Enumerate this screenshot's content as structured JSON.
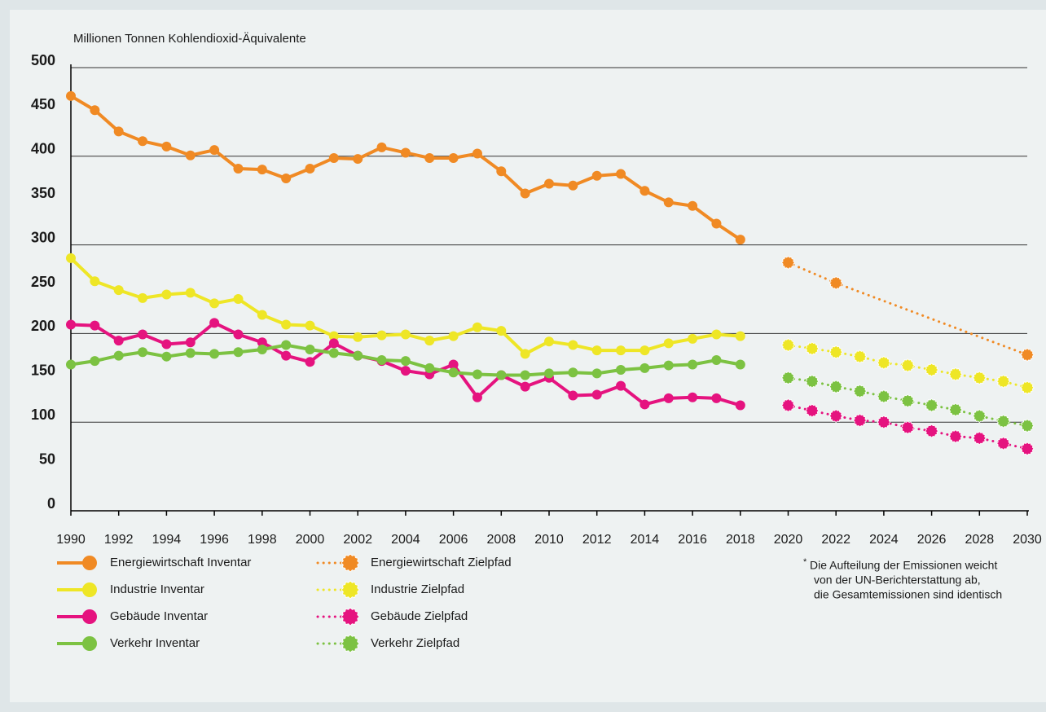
{
  "chart_data": {
    "type": "line",
    "ylabel": "Millionen Tonnen Kohlendioxid-Äquivalente",
    "xlim": [
      1990,
      2030
    ],
    "xticks": [
      1990,
      1992,
      1994,
      1996,
      1998,
      2000,
      2002,
      2004,
      2006,
      2008,
      2010,
      2012,
      2014,
      2016,
      2018,
      2020,
      2022,
      2024,
      2026,
      2028,
      2030
    ],
    "ylim": [
      0,
      500
    ],
    "yticks": [
      0,
      50,
      100,
      150,
      200,
      250,
      300,
      350,
      400,
      450,
      500
    ],
    "ygrid": [
      100,
      200,
      300,
      400,
      500
    ],
    "series": [
      {
        "name": "Energiewirtschaft Inventar",
        "color": "#f08a24",
        "style": "solid",
        "x": [
          1990,
          1991,
          1992,
          1993,
          1994,
          1995,
          1996,
          1997,
          1998,
          1999,
          2000,
          2001,
          2002,
          2003,
          2004,
          2005,
          2006,
          2007,
          2008,
          2009,
          2010,
          2011,
          2012,
          2013,
          2014,
          2015,
          2016,
          2017,
          2018
        ],
        "values": [
          468,
          452,
          428,
          417,
          411,
          401,
          407,
          386,
          385,
          375,
          386,
          398,
          397,
          410,
          404,
          398,
          398,
          403,
          383,
          358,
          369,
          367,
          378,
          380,
          361,
          348,
          344,
          324,
          306
        ]
      },
      {
        "name": "Industrie Inventar",
        "color": "#eee626",
        "style": "solid",
        "x": [
          1990,
          1991,
          1992,
          1993,
          1994,
          1995,
          1996,
          1997,
          1998,
          1999,
          2000,
          2001,
          2002,
          2003,
          2004,
          2005,
          2006,
          2007,
          2008,
          2009,
          2010,
          2011,
          2012,
          2013,
          2014,
          2015,
          2016,
          2017,
          2018
        ],
        "values": [
          285,
          259,
          249,
          240,
          244,
          246,
          234,
          239,
          221,
          210,
          209,
          197,
          196,
          198,
          199,
          192,
          197,
          207,
          203,
          177,
          191,
          187,
          181,
          181,
          181,
          189,
          194,
          199,
          197
        ]
      },
      {
        "name": "Gebäude Inventar",
        "color": "#e5137f",
        "style": "solid",
        "x": [
          1990,
          1991,
          1992,
          1993,
          1994,
          1995,
          1996,
          1997,
          1998,
          1999,
          2000,
          2001,
          2002,
          2003,
          2004,
          2005,
          2006,
          2007,
          2008,
          2009,
          2010,
          2011,
          2012,
          2013,
          2014,
          2015,
          2016,
          2017,
          2018
        ],
        "values": [
          210,
          209,
          192,
          199,
          188,
          190,
          212,
          199,
          190,
          175,
          168,
          189,
          175,
          169,
          158,
          154,
          165,
          128,
          153,
          140,
          150,
          130,
          131,
          141,
          120,
          127,
          128,
          127,
          119
        ]
      },
      {
        "name": "Verkehr Inventar",
        "color": "#7cc242",
        "style": "solid",
        "x": [
          1990,
          1991,
          1992,
          1993,
          1994,
          1995,
          1996,
          1997,
          1998,
          1999,
          2000,
          2001,
          2002,
          2003,
          2004,
          2005,
          2006,
          2007,
          2008,
          2009,
          2010,
          2011,
          2012,
          2013,
          2014,
          2015,
          2016,
          2017,
          2018
        ],
        "values": [
          165,
          169,
          175,
          179,
          174,
          178,
          177,
          179,
          182,
          187,
          182,
          178,
          175,
          170,
          169,
          161,
          156,
          154,
          153,
          153,
          155,
          156,
          155,
          159,
          161,
          164,
          165,
          170,
          165
        ]
      },
      {
        "name": "Energiewirtschaft Zielpfad",
        "color": "#f08a24",
        "style": "dotted",
        "x": [
          2020,
          2022,
          2030
        ],
        "values": [
          280,
          257,
          176
        ]
      },
      {
        "name": "Industrie Zielpfad",
        "color": "#eee626",
        "style": "dotted",
        "x": [
          2020,
          2021,
          2022,
          2023,
          2024,
          2025,
          2026,
          2027,
          2028,
          2029,
          2030
        ],
        "values": [
          187,
          183,
          179,
          174,
          167,
          164,
          159,
          154,
          150,
          146,
          139
        ]
      },
      {
        "name": "Gebäude Zielpfad",
        "color": "#e5137f",
        "style": "dotted",
        "x": [
          2020,
          2021,
          2022,
          2023,
          2024,
          2025,
          2026,
          2027,
          2028,
          2029,
          2030
        ],
        "values": [
          119,
          113,
          107,
          102,
          100,
          94,
          90,
          84,
          82,
          76,
          70
        ]
      },
      {
        "name": "Verkehr Zielpfad",
        "color": "#7cc242",
        "style": "dotted",
        "x": [
          2020,
          2021,
          2022,
          2023,
          2024,
          2025,
          2026,
          2027,
          2028,
          2029,
          2030
        ],
        "values": [
          150,
          146,
          140,
          135,
          129,
          124,
          119,
          114,
          107,
          101,
          96
        ]
      }
    ],
    "footnote_mark": "*",
    "footnote": [
      "Die Aufteilung der Emissionen weicht",
      "von der UN-Berichterstattung ab,",
      "die Gesamtemissionen sind identisch"
    ]
  }
}
